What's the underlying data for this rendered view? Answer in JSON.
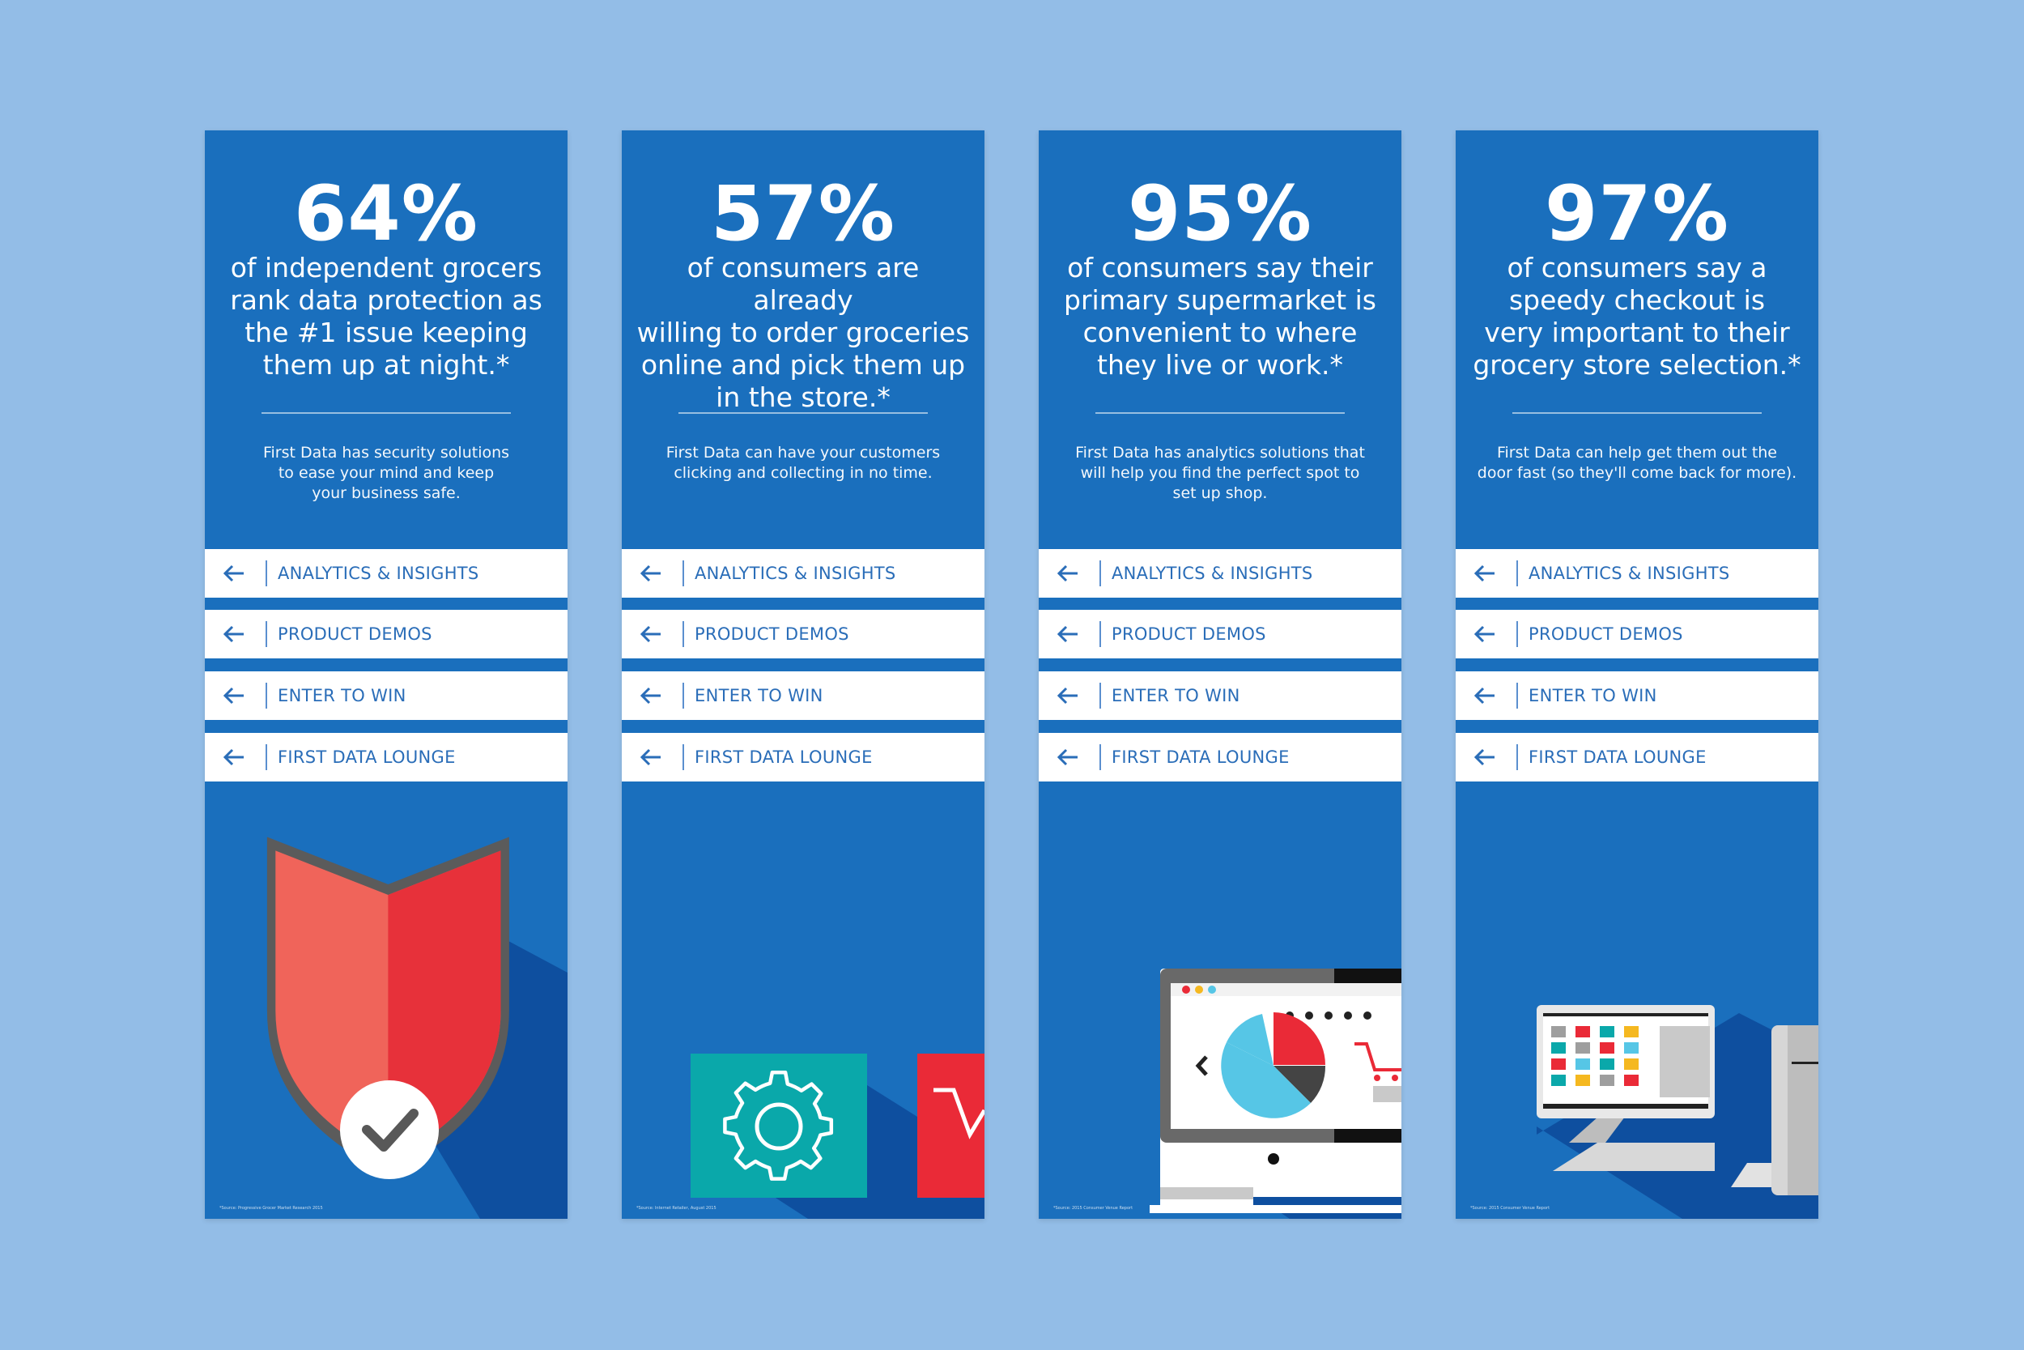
{
  "cards": [
    {
      "stat": "64%",
      "headline": "of independent grocers\nrank data protection as\nthe #1 issue keeping\nthem up at night.*",
      "description": "First Data has security solutions\nto ease your mind and keep\nyour business safe.",
      "footnote": "*Source: Progressive Grocer Market Research 2015"
    },
    {
      "stat": "57%",
      "headline": "of consumers are already\nwilling to order groceries\nonline and pick them up\nin the store.*",
      "description": "First Data can have your customers\nclicking and collecting in no time.",
      "footnote": "*Source: Internet Retailer, August 2015"
    },
    {
      "stat": "95%",
      "headline": "of consumers say their\nprimary supermarket is\nconvenient to where\nthey live or work.*",
      "description": "First Data has analytics solutions that\nwill help you find the perfect spot to\nset up shop.",
      "footnote": "*Source: 2015 Consumer Venue Report"
    },
    {
      "stat": "97%",
      "headline": "of consumers say a\nspeedy checkout is\nvery important to their\ngrocery store selection.*",
      "description": "First Data can help get them out the\ndoor fast (so they'll come back for more).",
      "footnote": "*Source: 2015 Consumer Venue Report"
    }
  ],
  "nav_items": [
    "ANALYTICS & INSIGHTS",
    "PRODUCT DEMOS",
    "ENTER TO WIN",
    "FIRST DATA LOUNGE"
  ],
  "icons": {
    "nav_arrow": "left-arrow-icon",
    "card_0": "shield-check-icon",
    "card_1": "gear-icon",
    "card_2": "monitor-analytics-icon",
    "card_3": "pos-terminal-icon"
  },
  "colors": {
    "background": "#93bde7",
    "banner": "#1a6fbd",
    "shadow": "#0e4f9f",
    "nav_text": "#2a6db8",
    "teal": "#0aa8aa",
    "red": "#ea2a37"
  }
}
